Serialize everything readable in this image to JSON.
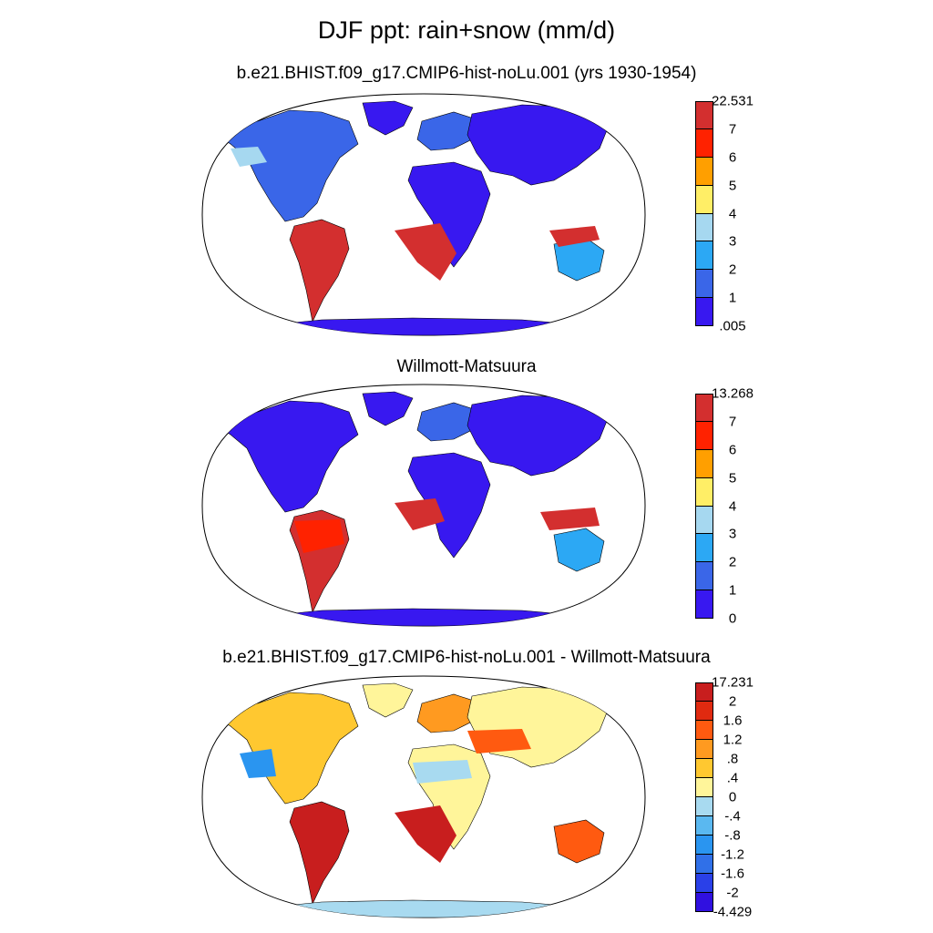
{
  "figure": {
    "title": "DJF ppt: rain+snow (mm/d)"
  },
  "panels": [
    {
      "id": "model",
      "title": "b.e21.BHIST.f09_g17.CMIP6-hist-noLu.001 (yrs 1930-1954)",
      "colorbar": {
        "labels": [
          "22.531",
          "7",
          "6",
          "5",
          "4",
          "3",
          "2",
          "1",
          ".005"
        ],
        "colors": [
          "#d32f2f",
          "#ff2200",
          "#ff9f00",
          "#ffee66",
          "#a6d8f0",
          "#2ca8f4",
          "#3a66e8",
          "#3818f0"
        ]
      }
    },
    {
      "id": "obs",
      "title": "Willmott-Matsuura",
      "colorbar": {
        "labels": [
          "13.268",
          "7",
          "6",
          "5",
          "4",
          "3",
          "2",
          "1",
          "0"
        ],
        "colors": [
          "#d32f2f",
          "#ff2200",
          "#ff9f00",
          "#ffee66",
          "#a6d8f0",
          "#2ca8f4",
          "#3a66e8",
          "#3818f0"
        ]
      }
    },
    {
      "id": "diff",
      "title": "b.e21.BHIST.f09_g17.CMIP6-hist-noLu.001 - Willmott-Matsuura",
      "colorbar": {
        "labels": [
          "17.231",
          "2",
          "1.6",
          "1.2",
          ".8",
          ".4",
          "0",
          "-.4",
          "-.8",
          "-1.2",
          "-1.6",
          "-2",
          "-4.429"
        ],
        "colors": [
          "#c81e1e",
          "#e02a10",
          "#ff5a10",
          "#ff9a20",
          "#ffc830",
          "#fff59a",
          "#a8daf0",
          "#5ab8f0",
          "#2a95f0",
          "#3070e8",
          "#2a40e8",
          "#3010e0"
        ]
      }
    }
  ],
  "map_regions": {
    "land_classes": [
      "north-america",
      "greenland",
      "south-america",
      "europe",
      "asia",
      "africa",
      "australia",
      "antarctica"
    ]
  }
}
